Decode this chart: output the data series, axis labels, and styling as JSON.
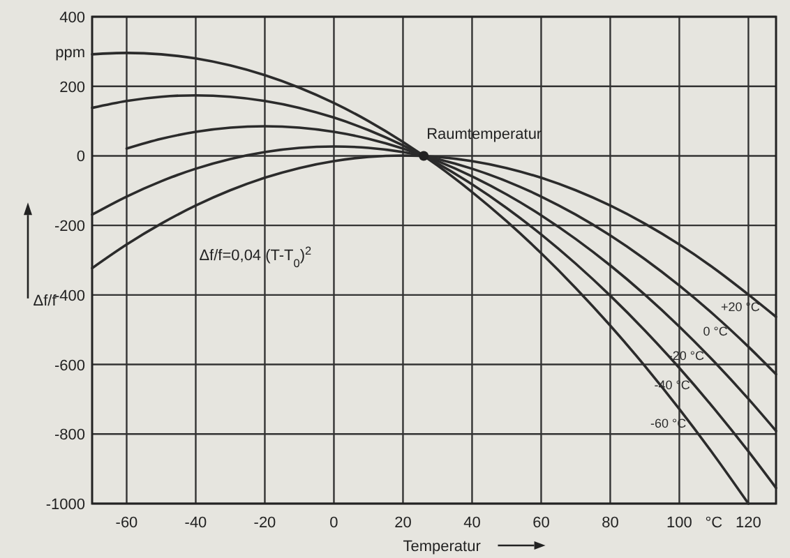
{
  "chart_data": {
    "type": "line",
    "xlabel": "Temperatur",
    "ylabel": "Δf/f",
    "x": [
      -70,
      -60,
      -50,
      -40,
      -30,
      -20,
      -10,
      0,
      10,
      20,
      30,
      40,
      50,
      60,
      70,
      80,
      90,
      100,
      110,
      120,
      128
    ],
    "series": [
      {
        "name": "-60 °C",
        "color": "#2b2b2b",
        "x": [
          -70,
          -60,
          -50,
          -40,
          -30,
          -20,
          -10,
          0,
          10,
          20,
          30,
          40,
          50,
          60,
          70,
          80,
          90,
          100,
          110,
          120
        ],
        "values": [
          292,
          296,
          292,
          280,
          260,
          232,
          196,
          152,
          100,
          40,
          -28,
          -104,
          -188,
          -280,
          -380,
          -488,
          -604,
          -728,
          -860,
          -1000
        ]
      },
      {
        "name": "-40 °C",
        "color": "#2b2b2b",
        "values": [
          138,
          158,
          170,
          174,
          170,
          158,
          138,
          110,
          74,
          30,
          -22,
          -82,
          -150,
          -226,
          -310,
          -402,
          -502,
          -610,
          -726,
          -850,
          -955
        ]
      },
      {
        "name": "-20 °C",
        "color": "#2b2b2b",
        "values": [
          null,
          21,
          49,
          69,
          81,
          85,
          81,
          69,
          49,
          21,
          -15,
          -59,
          -111,
          -171,
          -239,
          -315,
          -399,
          -491,
          -591,
          -699,
          -791
        ]
      },
      {
        "name": "0 °C",
        "color": "#2b2b2b",
        "values": [
          -169,
          -117,
          -73,
          -37,
          -9,
          11,
          23,
          27,
          23,
          11,
          -9,
          -37,
          -73,
          -117,
          -169,
          -229,
          -297,
          -373,
          -457,
          -549,
          -628
        ]
      },
      {
        "name": "+20 °C",
        "color": "#2b2b2b",
        "values": [
          -323,
          -255,
          -195,
          -143,
          -99,
          -63,
          -35,
          -15,
          -3,
          1,
          -3,
          -15,
          -35,
          -63,
          -99,
          -143,
          -195,
          -255,
          -323,
          -399,
          -463
        ]
      }
    ],
    "xlim": [
      -70,
      128
    ],
    "xticks": [
      -60,
      -40,
      -20,
      0,
      20,
      40,
      60,
      80,
      100,
      120
    ],
    "ylim": [
      -1000,
      400
    ],
    "yticks": [
      -1000,
      -800,
      -600,
      -400,
      -200,
      0,
      200,
      400
    ],
    "grid": true,
    "line_style": "solid",
    "marker": "none",
    "annotations": [
      "ppm",
      "°C",
      {
        "text": "Raumtemperatur",
        "x": 26,
        "y": 0
      },
      "Δf/f=0,04 (T-T$_{0}$)$^{2}$"
    ]
  }
}
